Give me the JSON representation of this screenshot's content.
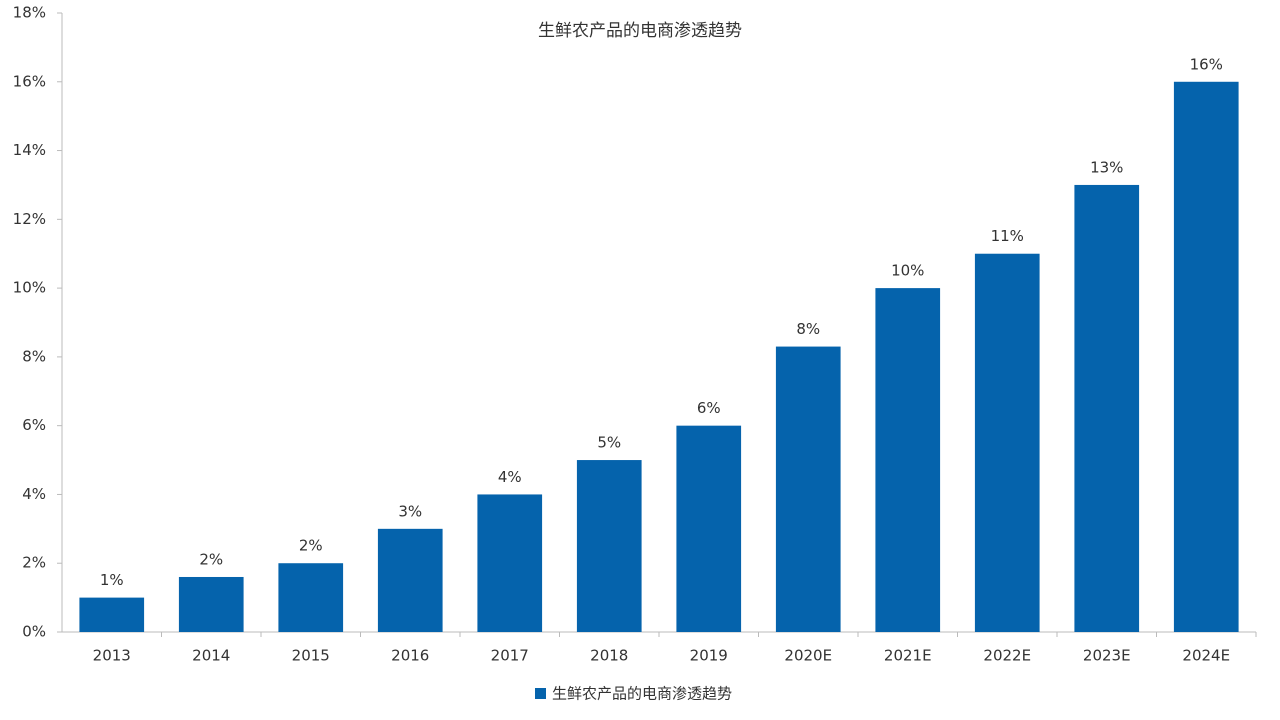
{
  "chart_data": {
    "type": "bar",
    "title": "生鲜农产品的电商渗透趋势",
    "categories": [
      "2013",
      "2014",
      "2015",
      "2016",
      "2017",
      "2018",
      "2019",
      "2020E",
      "2021E",
      "2022E",
      "2023E",
      "2024E"
    ],
    "series": [
      {
        "name": "生鲜农产品的电商渗透趋势",
        "color": "#0563ac",
        "values": [
          1.0,
          1.6,
          2.0,
          3.0,
          4.0,
          5.0,
          6.0,
          8.3,
          10.0,
          11.0,
          13.0,
          16.0
        ],
        "value_labels": [
          "1%",
          "2%",
          "2%",
          "3%",
          "4%",
          "5%",
          "6%",
          "8%",
          "10%",
          "11%",
          "13%",
          "16%"
        ]
      }
    ],
    "ylim": [
      0,
      18
    ],
    "yticks": [
      {
        "value": 0,
        "label": "0%"
      },
      {
        "value": 2,
        "label": "2%"
      },
      {
        "value": 4,
        "label": "4%"
      },
      {
        "value": 6,
        "label": "6%"
      },
      {
        "value": 8,
        "label": "8%"
      },
      {
        "value": 10,
        "label": "10%"
      },
      {
        "value": 12,
        "label": "12%"
      },
      {
        "value": 14,
        "label": "14%"
      },
      {
        "value": 16,
        "label": "16%"
      },
      {
        "value": 18,
        "label": "18%"
      }
    ],
    "grid": false,
    "legend": "bottom"
  }
}
